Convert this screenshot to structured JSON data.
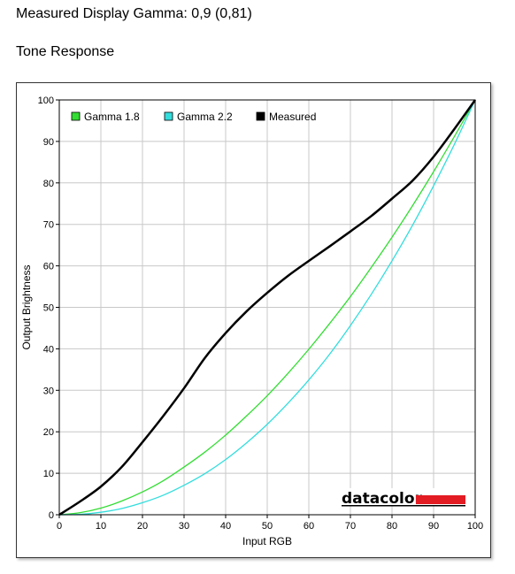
{
  "header": {
    "gamma_line": "Measured Display Gamma: 0,9 (0,81)",
    "section_title": "Tone Response"
  },
  "logo": {
    "text": "datacolor",
    "bar_color": "#e31b23"
  },
  "chart_data": {
    "type": "line",
    "title": "",
    "xlabel": "Input RGB",
    "ylabel": "Output Brightness",
    "xlim": [
      0,
      100
    ],
    "ylim": [
      0,
      100
    ],
    "xticks": [
      0,
      10,
      20,
      30,
      40,
      50,
      60,
      70,
      80,
      90,
      100
    ],
    "yticks": [
      0,
      10,
      20,
      30,
      40,
      50,
      60,
      70,
      80,
      90,
      100
    ],
    "grid": true,
    "legend_position": "top-left",
    "x": [
      0,
      5,
      10,
      15,
      20,
      25,
      30,
      35,
      40,
      45,
      50,
      55,
      60,
      65,
      70,
      75,
      80,
      85,
      90,
      95,
      100
    ],
    "series": [
      {
        "name": "Gamma 1.8",
        "color": "#33dd33",
        "values": [
          0,
          0.5,
          1.6,
          3.3,
          5.5,
          8.2,
          11.5,
          15.1,
          19.2,
          23.8,
          28.7,
          34.1,
          39.9,
          46.1,
          52.6,
          59.6,
          66.9,
          74.6,
          82.7,
          91.2,
          100
        ]
      },
      {
        "name": "Gamma 2.2",
        "color": "#33dddd",
        "values": [
          0,
          0.1,
          0.6,
          1.5,
          2.9,
          4.7,
          7.1,
          9.9,
          13.3,
          17.3,
          21.8,
          26.9,
          32.5,
          38.7,
          45.6,
          53.1,
          61.2,
          69.9,
          79.3,
          89.3,
          100
        ]
      },
      {
        "name": "Measured",
        "color": "#000000",
        "values": [
          0,
          3.2,
          6.8,
          11.5,
          17.5,
          23.8,
          30.5,
          37.8,
          43.8,
          49.0,
          53.5,
          57.6,
          61.2,
          64.7,
          68.3,
          72.0,
          76.2,
          80.6,
          86.3,
          93.0,
          100
        ]
      }
    ]
  }
}
